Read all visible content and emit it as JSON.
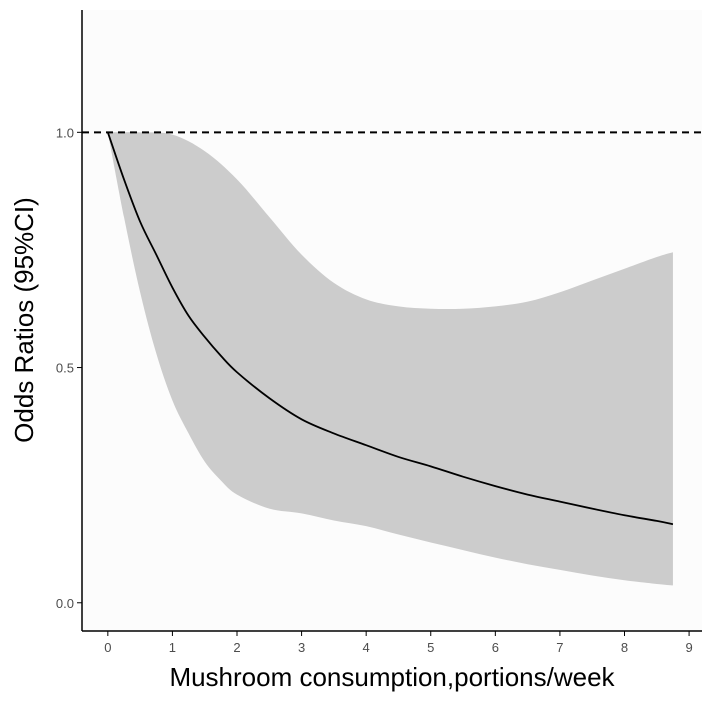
{
  "chart_data": {
    "type": "line",
    "title": "",
    "xlabel": "Mushroom consumption,portions/week",
    "ylabel": "Odds Ratios (95%CI)",
    "xlim": [
      -0.4,
      9.2
    ],
    "ylim": [
      -0.06,
      1.26
    ],
    "x_ticks": [
      0,
      1,
      2,
      3,
      4,
      5,
      6,
      7,
      8,
      9
    ],
    "y_ticks": [
      0.0,
      0.5,
      1.0
    ],
    "y_tick_labels": [
      "0.0",
      "0.5",
      "1.0"
    ],
    "reference_line": {
      "y": 1.0,
      "style": "dashed"
    },
    "series": [
      {
        "name": "Odds Ratio",
        "x": [
          0,
          0.25,
          0.5,
          0.75,
          1,
          1.25,
          1.5,
          1.75,
          2,
          2.5,
          3,
          3.5,
          4,
          4.5,
          5,
          5.5,
          6,
          6.5,
          7,
          7.5,
          8,
          8.5,
          8.75
        ],
        "y": [
          1.0,
          0.9,
          0.81,
          0.74,
          0.67,
          0.61,
          0.565,
          0.525,
          0.49,
          0.435,
          0.39,
          0.36,
          0.335,
          0.31,
          0.29,
          0.268,
          0.248,
          0.23,
          0.215,
          0.2,
          0.186,
          0.174,
          0.167
        ]
      },
      {
        "name": "95% CI upper",
        "x": [
          0,
          0.5,
          1,
          1.5,
          2,
          2.5,
          3,
          3.5,
          4,
          4.5,
          5,
          5.5,
          6,
          6.5,
          7,
          7.5,
          8,
          8.5,
          8.75
        ],
        "y": [
          1.0,
          1.0,
          0.995,
          0.96,
          0.9,
          0.82,
          0.74,
          0.68,
          0.645,
          0.63,
          0.625,
          0.625,
          0.63,
          0.64,
          0.66,
          0.685,
          0.71,
          0.735,
          0.745
        ]
      },
      {
        "name": "95% CI lower",
        "x": [
          0,
          0.25,
          0.5,
          0.75,
          1,
          1.25,
          1.5,
          1.75,
          2,
          2.5,
          3,
          3.5,
          4,
          4.5,
          5,
          5.5,
          6,
          6.5,
          7,
          7.5,
          8,
          8.5,
          8.75
        ],
        "y": [
          1.0,
          0.82,
          0.66,
          0.53,
          0.43,
          0.36,
          0.3,
          0.26,
          0.23,
          0.2,
          0.19,
          0.175,
          0.163,
          0.145,
          0.128,
          0.112,
          0.096,
          0.082,
          0.07,
          0.058,
          0.048,
          0.04,
          0.037
        ]
      }
    ],
    "colors": {
      "panel": "#fcfcfc",
      "band": "#cccccc",
      "line": "#000000",
      "reference": "#000000",
      "axis": "#000000",
      "tick_text": "#4d4d4d"
    }
  }
}
